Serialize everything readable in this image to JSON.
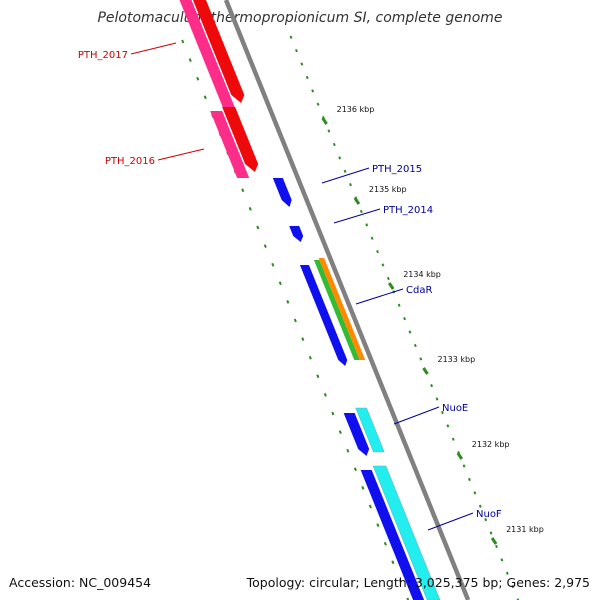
{
  "title": "Pelotomaculum thermopropionicum SI, complete genome",
  "footer": {
    "accession": "Accession: NC_009454",
    "summary": "Topology: circular; Length: 3,025,375 bp; Genes: 2,975"
  },
  "ticks": [
    {
      "label": "2136 kbp"
    },
    {
      "label": "2135 kbp"
    },
    {
      "label": "2134 kbp"
    },
    {
      "label": "2133 kbp"
    },
    {
      "label": "2132 kbp"
    },
    {
      "label": "2131 kbp"
    }
  ],
  "genes": [
    {
      "name": "PTH_2017",
      "strand": "reverse",
      "color": "#d40000"
    },
    {
      "name": "PTH_2016",
      "strand": "reverse",
      "color": "#d40000"
    },
    {
      "name": "PTH_2015",
      "strand": "forward",
      "color": "#0000a0"
    },
    {
      "name": "PTH_2014",
      "strand": "forward",
      "color": "#0000a0"
    },
    {
      "name": "CdaR",
      "strand": "reverse",
      "color": "#0000a0"
    },
    {
      "name": "NuoE",
      "strand": "forward",
      "color": "#0000a0"
    },
    {
      "name": "NuoF",
      "strand": "forward",
      "color": "#0000a0"
    }
  ],
  "colors": {
    "backbone": "#808080",
    "ruler": "#2e8b22",
    "cds_forward": "#1010ee",
    "cds_reverse_red": "#ee0a0a",
    "pink": "#ff2d8a",
    "cyan": "#22eef0",
    "green": "#33bb33",
    "orange": "#ff8a00",
    "label_red": "#cc0000",
    "label_blue": "#000099"
  }
}
